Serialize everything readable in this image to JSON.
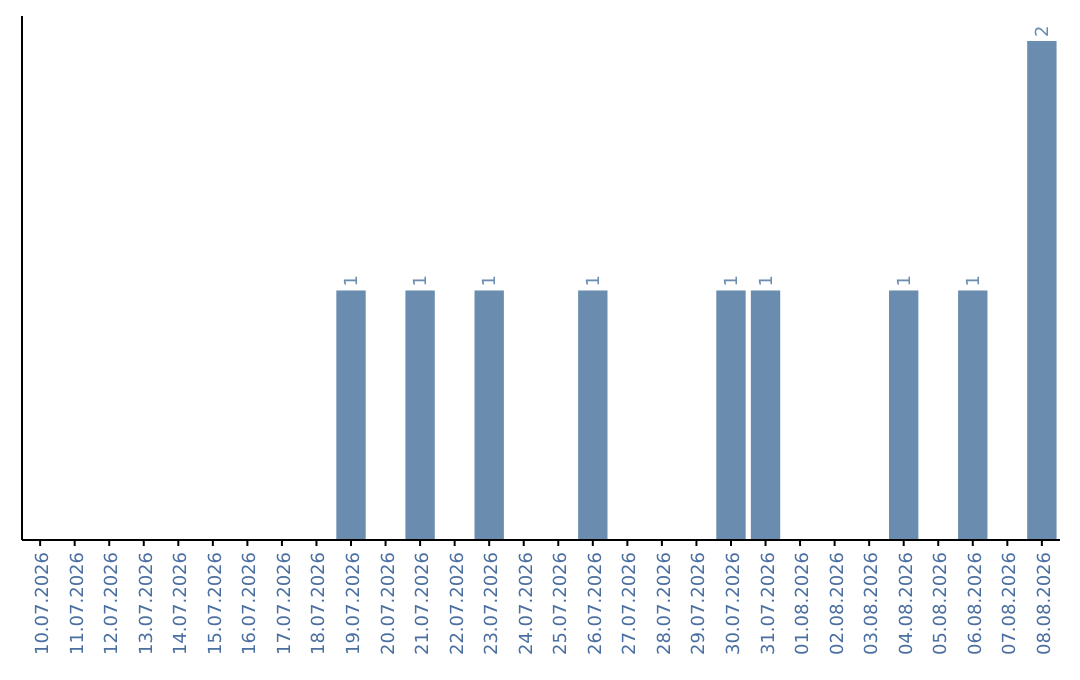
{
  "chart_data": {
    "type": "bar",
    "categories": [
      "10.07.2026",
      "11.07.2026",
      "12.07.2026",
      "13.07.2026",
      "14.07.2026",
      "15.07.2026",
      "16.07.2026",
      "17.07.2026",
      "18.07.2026",
      "19.07.2026",
      "20.07.2026",
      "21.07.2026",
      "22.07.2026",
      "23.07.2026",
      "24.07.2026",
      "25.07.2026",
      "26.07.2026",
      "27.07.2026",
      "28.07.2026",
      "29.07.2026",
      "30.07.2026",
      "31.07.2026",
      "01.08.2026",
      "02.08.2026",
      "03.08.2026",
      "04.08.2026",
      "05.08.2026",
      "06.08.2026",
      "07.08.2026",
      "08.08.2026"
    ],
    "values": [
      0,
      0,
      0,
      0,
      0,
      0,
      0,
      0,
      0,
      1,
      0,
      1,
      0,
      1,
      0,
      0,
      1,
      0,
      0,
      0,
      1,
      1,
      0,
      0,
      0,
      1,
      0,
      1,
      0,
      2
    ],
    "value_labels": [
      null,
      null,
      null,
      null,
      null,
      null,
      null,
      null,
      null,
      "1",
      null,
      "1",
      null,
      "1",
      null,
      null,
      "1",
      null,
      null,
      null,
      "1",
      "1",
      null,
      null,
      null,
      "1",
      null,
      "1",
      null,
      "2"
    ],
    "color": "#6a8caf"
  }
}
